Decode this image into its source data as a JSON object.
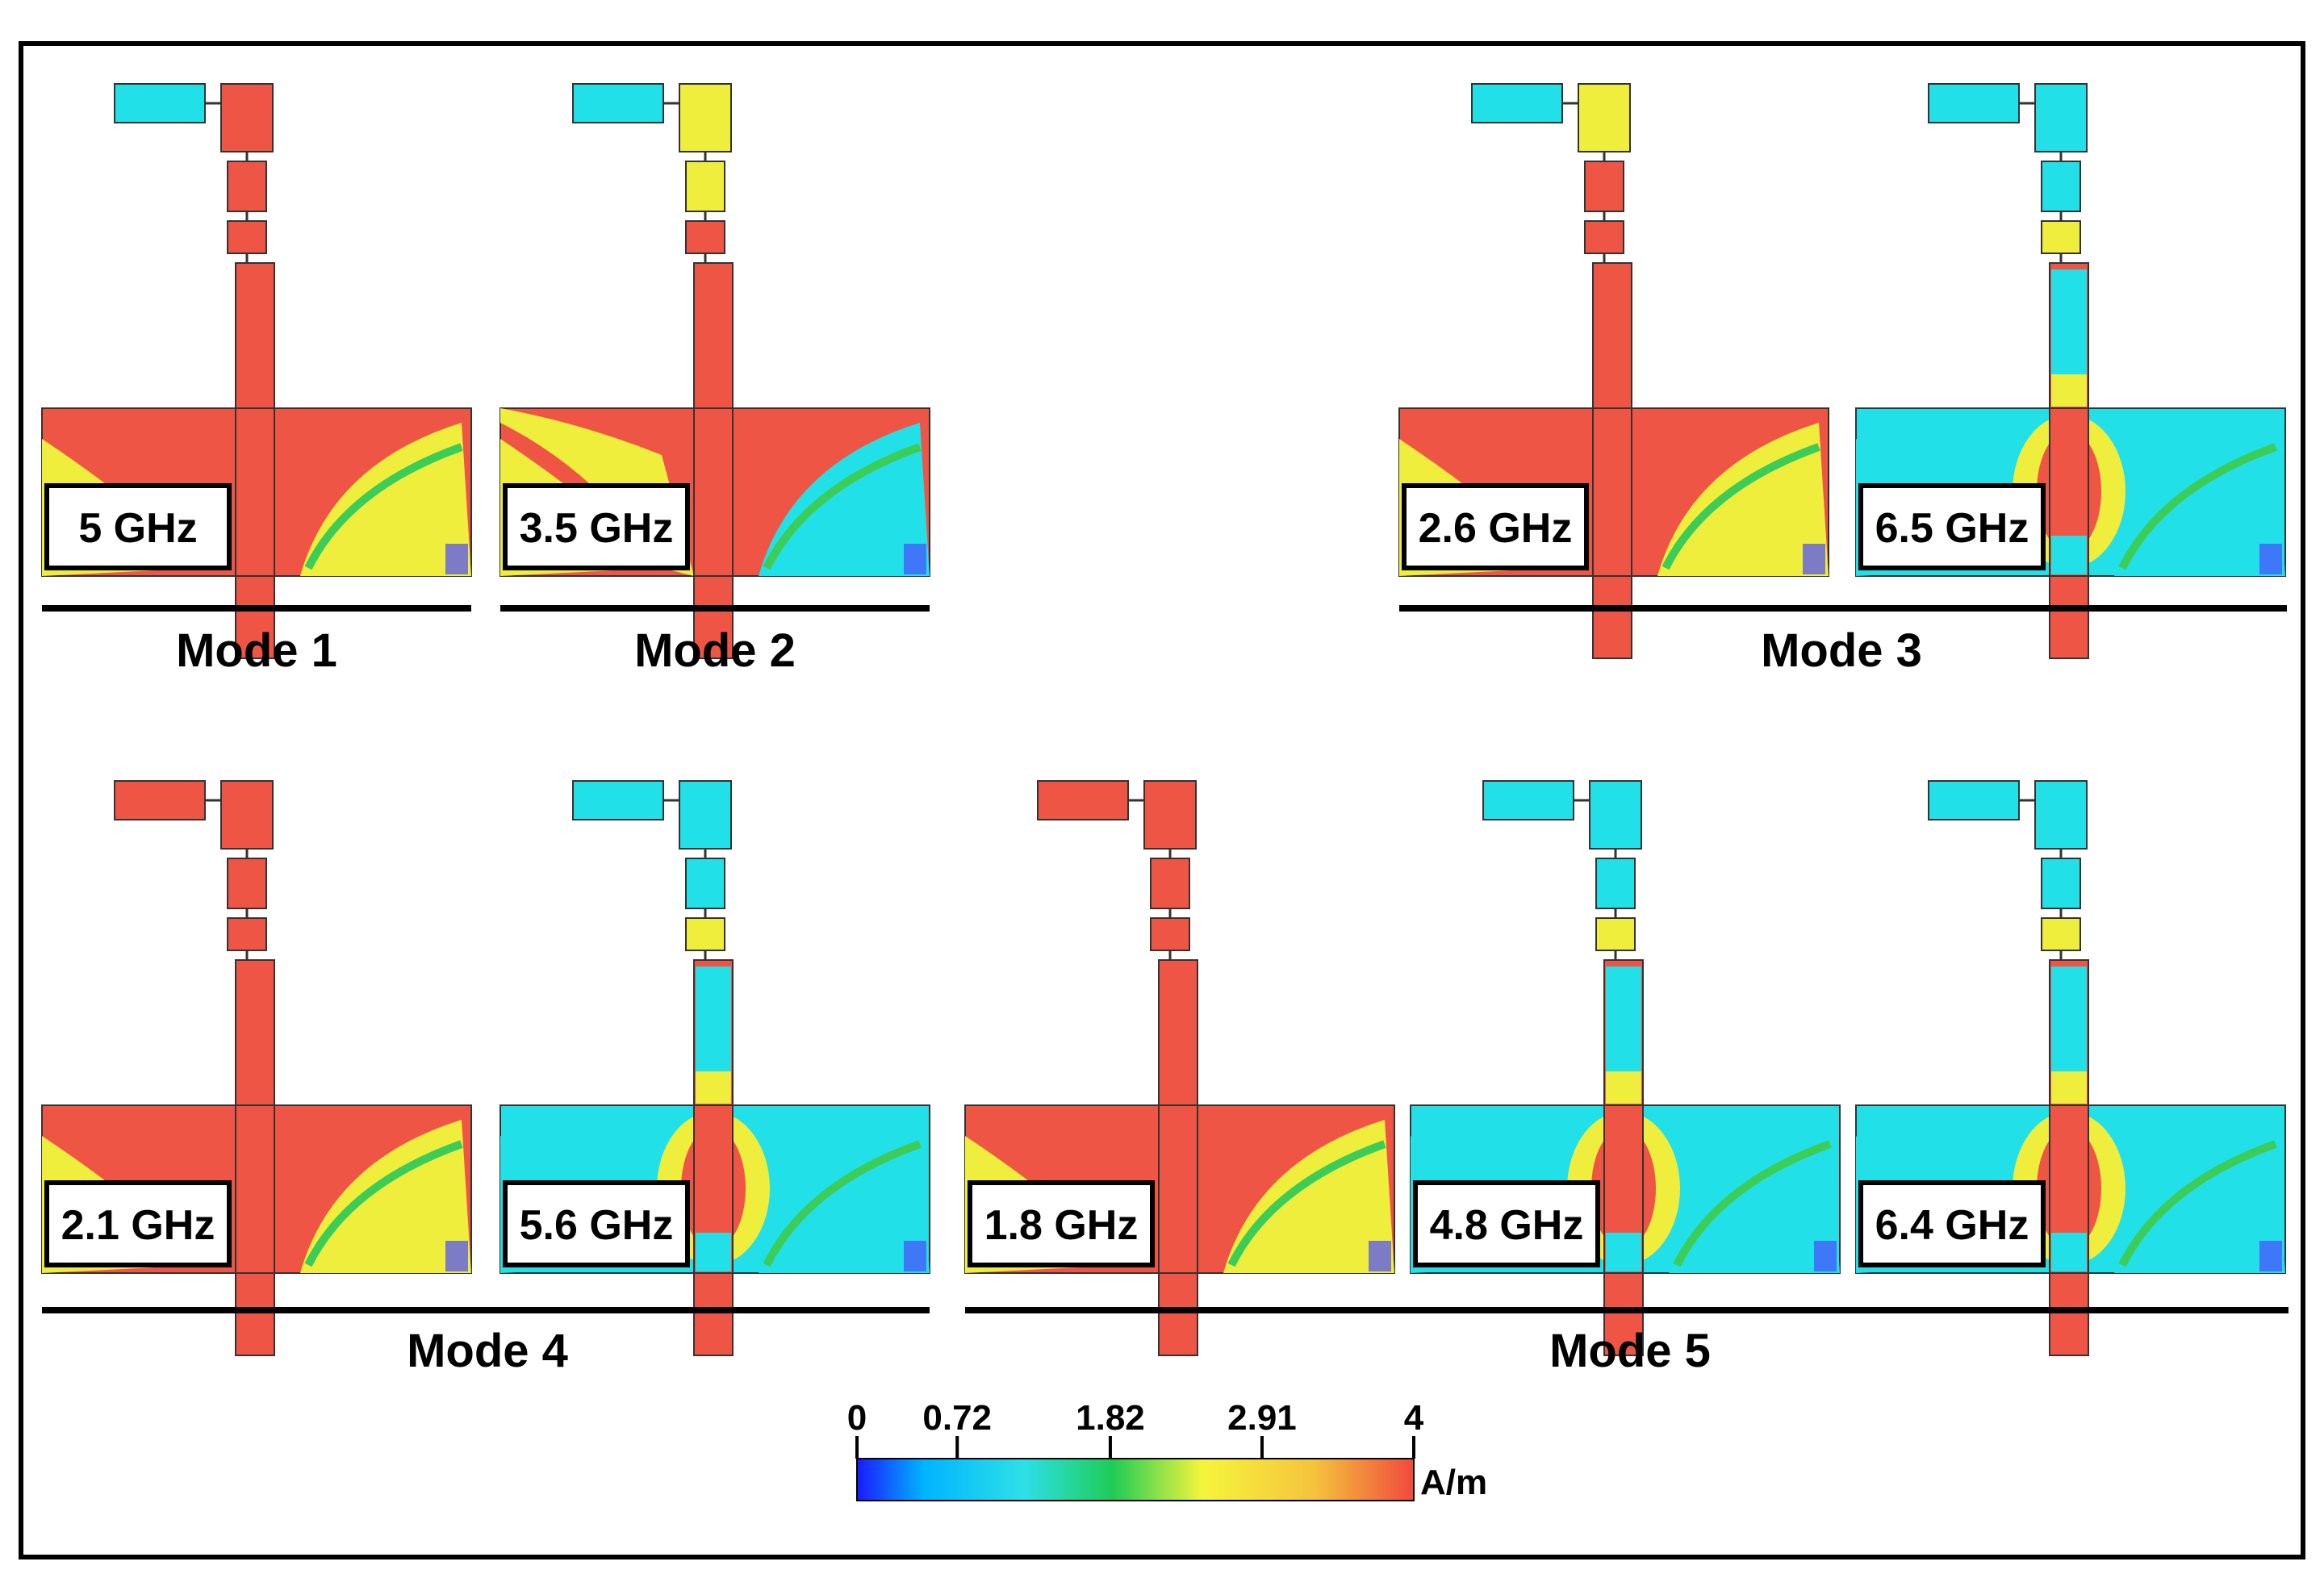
{
  "panels": [
    {
      "freq": "5 GHz"
    },
    {
      "freq": "3.5 GHz"
    },
    {
      "freq": "2.6 GHz"
    },
    {
      "freq": "6.5 GHz"
    },
    {
      "freq": "2.1 GHz"
    },
    {
      "freq": "5.6 GHz"
    },
    {
      "freq": "1.8 GHz"
    },
    {
      "freq": "4.8 GHz"
    },
    {
      "freq": "6.4 GHz"
    }
  ],
  "modes": [
    {
      "label": "Mode 1"
    },
    {
      "label": "Mode 2"
    },
    {
      "label": "Mode 3"
    },
    {
      "label": "Mode 4"
    },
    {
      "label": "Mode 5"
    }
  ],
  "colorbar": {
    "ticks": [
      "0",
      "0.72",
      "1.82",
      "2.91",
      "4"
    ],
    "tick_values": [
      0,
      0.72,
      1.82,
      2.91,
      4
    ],
    "range": [
      0,
      4
    ],
    "unit": "A/m",
    "stops": [
      "#1a1aff",
      "#00b4ff",
      "#2de0e8",
      "#1fcc55",
      "#f5f53c",
      "#f5c43c",
      "#f04a3c"
    ]
  },
  "colors": {
    "low": "#22e0e8",
    "mid": "#f0ee3c",
    "high": "#ef5544",
    "transition": "#3ccc58",
    "deep": "#4a4aff"
  }
}
